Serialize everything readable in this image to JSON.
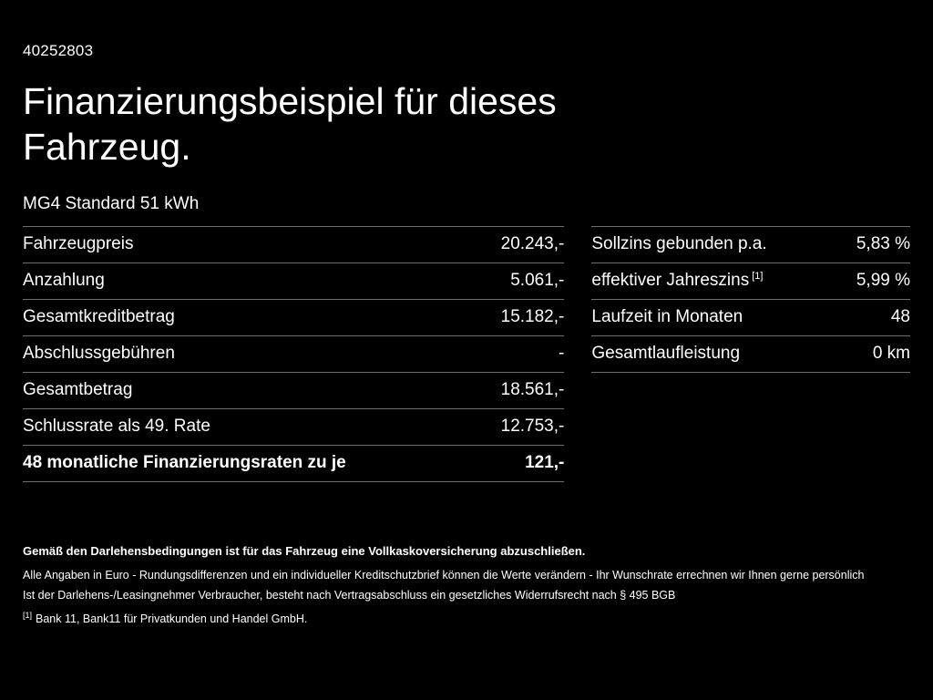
{
  "page": {
    "id_number": "40252803",
    "title": "Finanzierungsbeispiel für dieses Fahrzeug.",
    "subtitle": "MG4 Standard 51 kWh"
  },
  "left_table": {
    "rows": [
      {
        "label": "Fahrzeugpreis",
        "value": "20.243,-"
      },
      {
        "label": "Anzahlung",
        "value": "5.061,-"
      },
      {
        "label": "Gesamtkreditbetrag",
        "value": "15.182,-"
      },
      {
        "label": "Abschlussgebühren",
        "value": "-"
      },
      {
        "label": "Gesamtbetrag",
        "value": "18.561,-"
      },
      {
        "label": "Schlussrate als 49. Rate",
        "value": "12.753,-"
      },
      {
        "label": "48 monatliche Finanzierungsraten zu je",
        "value": "121,-"
      }
    ]
  },
  "right_table": {
    "rows": [
      {
        "label": "Sollzins gebunden p.a.",
        "value": "5,83 %"
      },
      {
        "label": "effektiver Jahreszins",
        "sup": "[1]",
        "value": "5,99 %"
      },
      {
        "label": "Laufzeit in Monaten",
        "value": "48"
      },
      {
        "label": "Gesamtlaufleistung",
        "value": "0 km"
      }
    ]
  },
  "footnotes": {
    "line1": "Gemäß den Darlehensbedingungen ist für das Fahrzeug eine Vollkaskoversicherung abzuschließen.",
    "line2": "Alle Angaben in Euro - Rundungsdifferenzen und ein individueller Kreditschutzbrief können die Werte verändern - Ihr Wunschrate errechnen wir Ihnen gerne persönlich",
    "line3": "Ist der Darlehens-/Leasingnehmer Verbraucher, besteht nach Vertragsabschluss ein gesetzliches Widerrufsrecht nach § 495 BGB",
    "line4_marker": "[1]",
    "line4": "Bank 11, Bank11 für Privatkunden und Handel GmbH."
  },
  "colors": {
    "background": "#000000",
    "text": "#ffffff",
    "divider": "#6e6e6e"
  }
}
